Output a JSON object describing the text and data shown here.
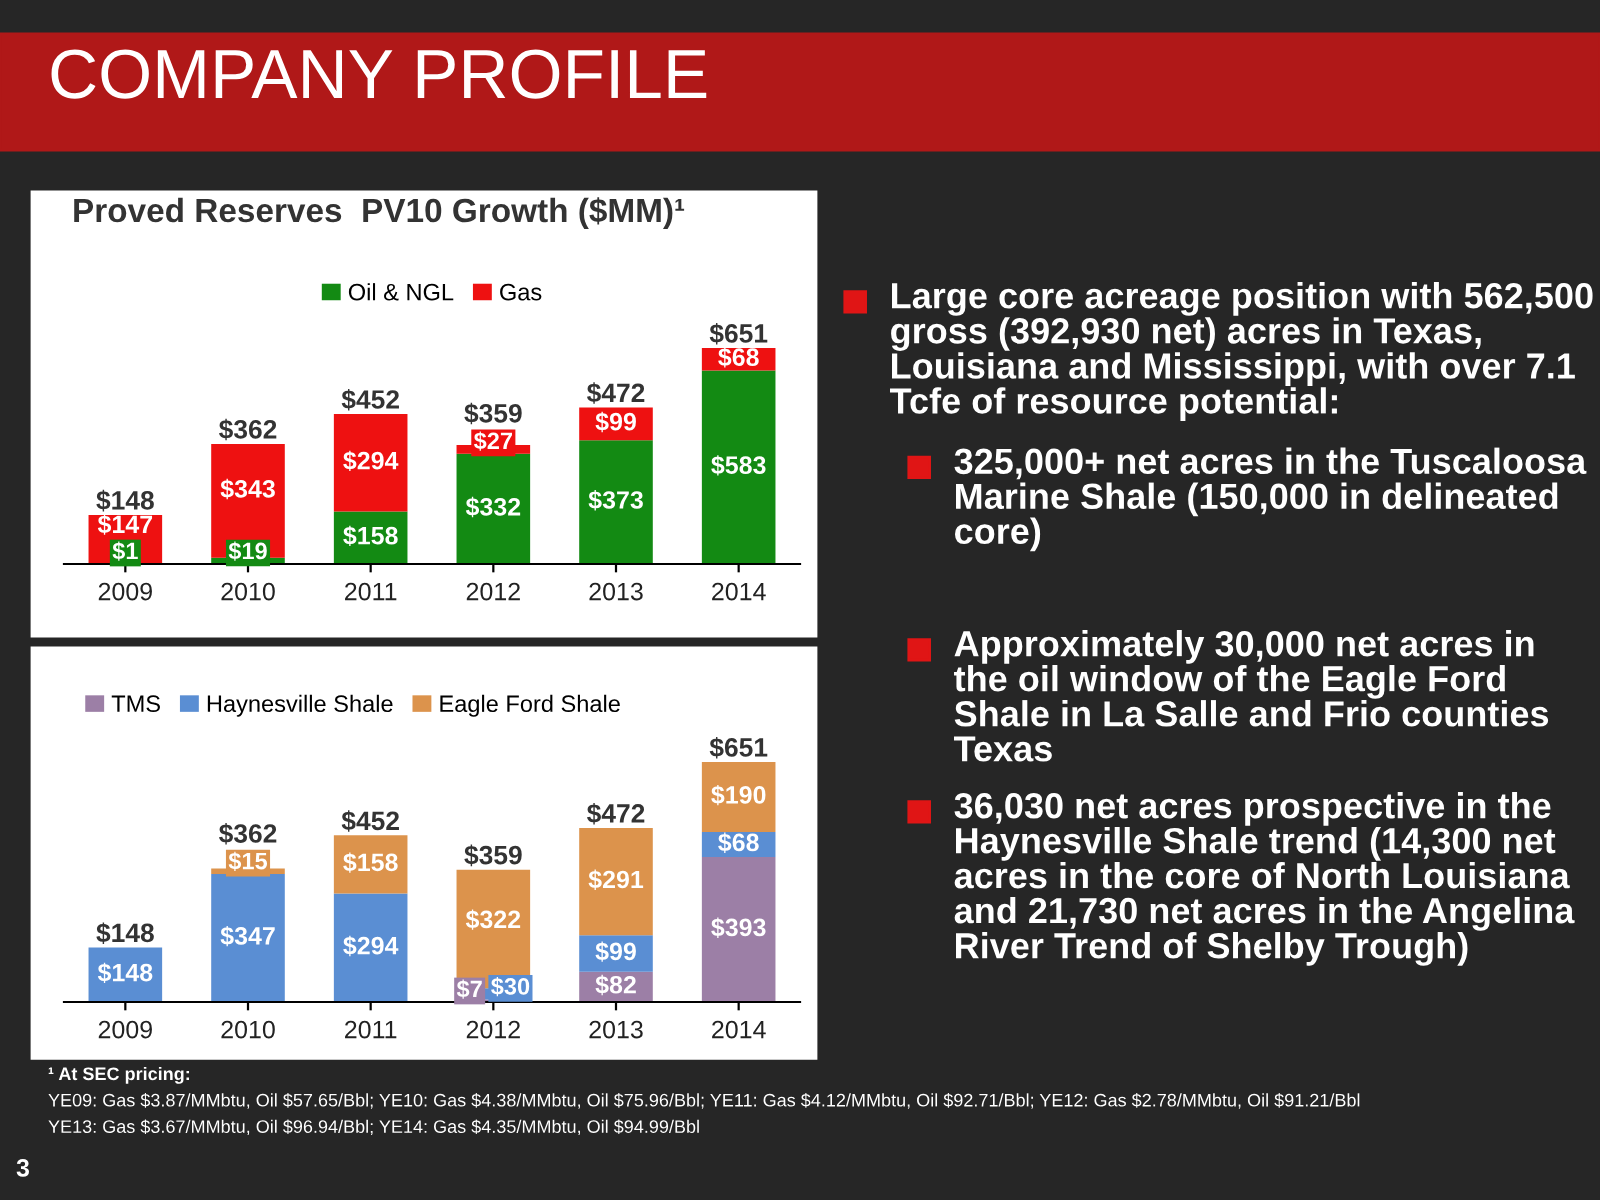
{
  "chart_data": [
    {
      "type": "bar",
      "title": "Proved Reserves  PV10 Growth ($MM)¹",
      "stacked": true,
      "categories": [
        "2009",
        "2010",
        "2011",
        "2012",
        "2013",
        "2014"
      ],
      "series": [
        {
          "name": "Oil & NGL",
          "color": "#138a13",
          "values": [
            1,
            19,
            158,
            332,
            373,
            583
          ],
          "value_labels": [
            "$1",
            "$19",
            "$158",
            "$332",
            "$373",
            "$583"
          ]
        },
        {
          "name": "Gas",
          "color": "#ee1111",
          "values": [
            147,
            343,
            294,
            27,
            99,
            68
          ],
          "value_labels": [
            "$147",
            "$343",
            "$294",
            "$27",
            "$99",
            "$68"
          ]
        }
      ],
      "totals": [
        "$148",
        "$362",
        "$452",
        "$359",
        "$472",
        "$651"
      ],
      "legend": "top",
      "grid": false,
      "tick_labels": "x"
    },
    {
      "type": "bar",
      "stacked": true,
      "categories": [
        "2009",
        "2010",
        "2011",
        "2012",
        "2013",
        "2014"
      ],
      "series": [
        {
          "name": "TMS",
          "color": "#9c7fa6",
          "values": [
            null,
            null,
            null,
            7,
            82,
            393
          ],
          "value_labels": [
            null,
            null,
            null,
            "$7",
            "$82",
            "$393"
          ]
        },
        {
          "name": "Haynesville Shale",
          "color": "#5a8ed3",
          "values": [
            148,
            347,
            294,
            30,
            99,
            68
          ],
          "value_labels": [
            "$148",
            "$347",
            "$294",
            "$30",
            "$99",
            "$68"
          ]
        },
        {
          "name": "Eagle Ford Shale",
          "color": "#dc934c",
          "values": [
            null,
            15,
            158,
            322,
            291,
            190
          ],
          "value_labels": [
            null,
            "$15",
            "$158",
            "$322",
            "$291",
            "$190"
          ]
        }
      ],
      "totals": [
        "$148",
        "$362",
        "$452",
        "$359",
        "$472",
        "$651"
      ],
      "legend": "top left",
      "grid": false,
      "tick_labels": "x",
      "annotations": [
        "¹ At SEC pricing:",
        "YE09: Gas $3.87/MMbtu, Oil $57.65/Bbl; YE10: Gas $4.38/MMbtu, Oil $75.96/Bbl; YE11: Gas $4.12/MMbtu, Oil $92.71/Bbl; YE12: Gas $2.78/MMbtu, Oil $91.21/Bbl",
        "YE13: Gas $3.67/MMbtu, Oil $96.94/Bbl; YE14: Gas $4.35/MMbtu, Oil $94.99/Bbl"
      ]
    },
    {
      "type": "other",
      "title": "COMPANY PROFILE",
      "annotations": [
        "Large core acreage position with 562,500 gross (392,930 net) acres in Texas, Louisiana and Mississippi, with over 7.1 Tcfe of resource potential:",
        "325,000+ net acres in the Tuscaloosa Marine Shale (150,000 in delineated core)",
        "Approximately 30,000 net acres in the oil window of the Eagle Ford Shale in La Salle and Frio counties Texas",
        "36,030 net acres prospective in the Haynesville Shale trend (14,300 net acres in the core of North Louisiana and 21,730 net acres in the Angelina River Trend of Shelby Trough)",
        "3"
      ]
    }
  ]
}
